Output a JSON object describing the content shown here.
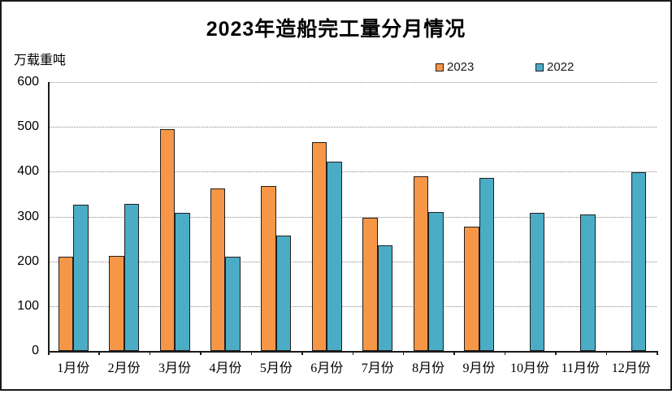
{
  "window": {
    "background": "#ffffff",
    "frame_border_color": "#1a1a1a"
  },
  "chart_data": {
    "type": "bar",
    "title": "2023年造船完工量分月情况",
    "ylabel": "万载重吨",
    "xlabel": "",
    "categories": [
      "1月份",
      "2月份",
      "3月份",
      "4月份",
      "5月份",
      "6月份",
      "7月份",
      "8月份",
      "9月份",
      "10月份",
      "11月份",
      "12月份"
    ],
    "series": [
      {
        "name": "2023",
        "color": "#F79646",
        "values": [
          211,
          212,
          495,
          363,
          368,
          466,
          297,
          390,
          277,
          null,
          null,
          null
        ]
      },
      {
        "name": "2022",
        "color": "#4BACC6",
        "values": [
          326,
          328,
          309,
          211,
          257,
          422,
          236,
          310,
          386,
          309,
          304,
          398
        ]
      }
    ],
    "ylim": [
      0,
      600
    ],
    "ytick_interval": 100,
    "grid": "horizontal-dotted",
    "legend_position": "top-right",
    "bar_border_color": "#1f1f1f"
  }
}
